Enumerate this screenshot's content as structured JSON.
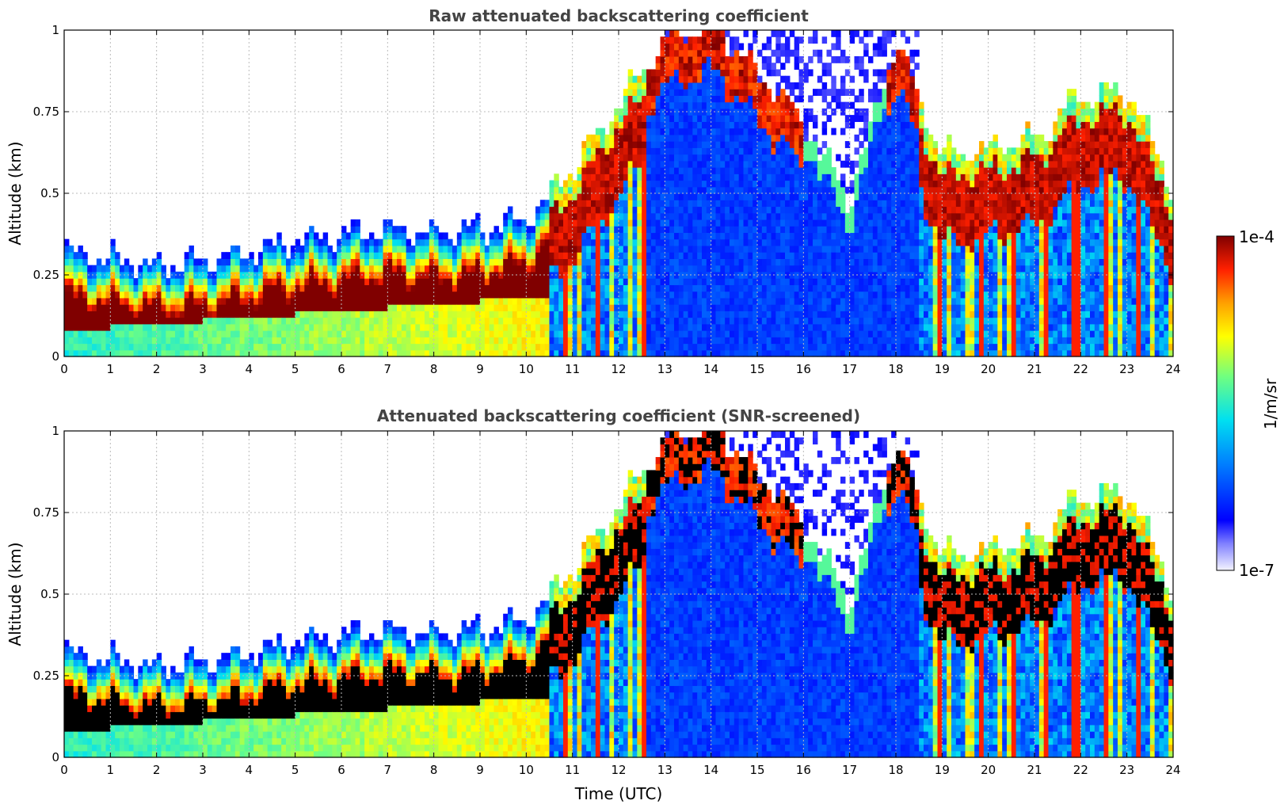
{
  "chart_data": [
    {
      "type": "heatmap",
      "title": "Raw attenuated backscattering coefficient",
      "xlabel": "",
      "ylabel": "Altitude (km)",
      "xlim": [
        0,
        24
      ],
      "ylim": [
        0,
        1
      ],
      "xticks": [
        "0",
        "1",
        "2",
        "3",
        "4",
        "5",
        "6",
        "7",
        "8",
        "9",
        "10",
        "11",
        "12",
        "13",
        "14",
        "15",
        "16",
        "17",
        "18",
        "19",
        "20",
        "21",
        "22",
        "23",
        "24"
      ],
      "yticks": [
        "0",
        "0.25",
        "0.5",
        "0.75",
        "1"
      ],
      "ytick_values": [
        0,
        0.25,
        0.5,
        0.75,
        1
      ],
      "grid": true,
      "screened": false,
      "layer_top_km": [
        {
          "t": 0,
          "top": 0.3
        },
        {
          "t": 1,
          "top": 0.28
        },
        {
          "t": 2,
          "top": 0.26
        },
        {
          "t": 3,
          "top": 0.27
        },
        {
          "t": 4,
          "top": 0.3
        },
        {
          "t": 5,
          "top": 0.33
        },
        {
          "t": 6,
          "top": 0.35
        },
        {
          "t": 7,
          "top": 0.37
        },
        {
          "t": 8,
          "top": 0.36
        },
        {
          "t": 9,
          "top": 0.37
        },
        {
          "t": 10,
          "top": 0.4
        },
        {
          "t": 11,
          "top": 0.55
        },
        {
          "t": 12,
          "top": 0.75
        },
        {
          "t": 13,
          "top": 0.95
        },
        {
          "t": 14,
          "top": 1.0
        },
        {
          "t": 15,
          "top": 0.85
        },
        {
          "t": 16,
          "top": 0.7
        },
        {
          "t": 17,
          "top": 0.45
        },
        {
          "t": 18,
          "top": 0.95
        },
        {
          "t": 19,
          "top": 0.6
        },
        {
          "t": 20,
          "top": 0.62
        },
        {
          "t": 21,
          "top": 0.65
        },
        {
          "t": 22,
          "top": 0.78
        },
        {
          "t": 23,
          "top": 0.8
        },
        {
          "t": 24,
          "top": 0.5
        }
      ]
    },
    {
      "type": "heatmap",
      "title": "Attenuated backscattering coefficient (SNR-screened)",
      "xlabel": "Time (UTC)",
      "ylabel": "Altitude (km)",
      "xlim": [
        0,
        24
      ],
      "ylim": [
        0,
        1
      ],
      "xticks": [
        "0",
        "1",
        "2",
        "3",
        "4",
        "5",
        "6",
        "7",
        "8",
        "9",
        "10",
        "11",
        "12",
        "13",
        "14",
        "15",
        "16",
        "17",
        "18",
        "19",
        "20",
        "21",
        "22",
        "23",
        "24"
      ],
      "yticks": [
        "0",
        "0.25",
        "0.5",
        "0.75",
        "1"
      ],
      "ytick_values": [
        0,
        0.25,
        0.5,
        0.75,
        1
      ],
      "grid": true,
      "screened": true
    }
  ],
  "colorbar": {
    "label": "1/m/sr",
    "max_label": "1e-4",
    "min_label": "1e-7",
    "vmin": 1e-07,
    "vmax": 0.0001,
    "scale": "log",
    "colormap": "jet"
  },
  "colors": {
    "background": "#ffffff",
    "title": "#444444",
    "grid": "#bbbbbb"
  }
}
